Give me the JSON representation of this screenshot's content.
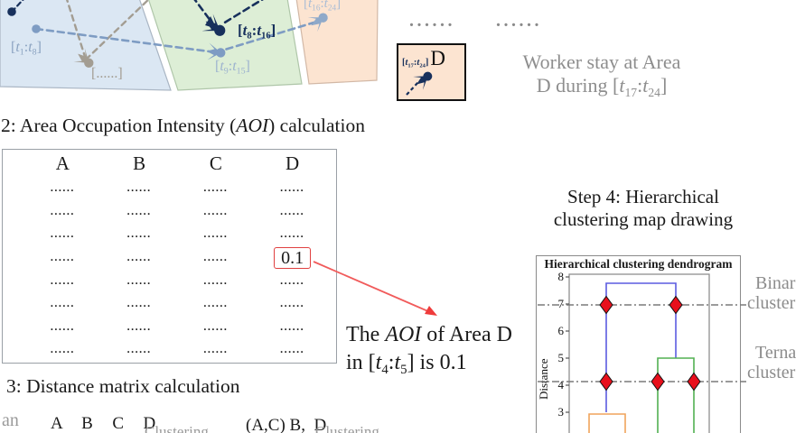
{
  "map": {
    "regions": [
      {
        "name": "area-left",
        "fill": "#dbe7f3",
        "stroke": "#aab6c4"
      },
      {
        "name": "area-middle",
        "fill": "#ddeed6",
        "stroke": "#afc6a9"
      },
      {
        "name": "area-right",
        "fill": "#fce4d1",
        "stroke": "#d2b8a6"
      }
    ],
    "labels": {
      "t1_t8": "[<i>t</i><sub>1</sub>:<i>t</i><sub>8</sub>]",
      "dots": "[......]",
      "t8_t16": "[<i>t</i><sub>8</sub>:<i>t</i><sub>16</sub>]",
      "t9_t15": "[<i>t</i><sub>9</sub>:<i>t</i><sub>15</sub>]",
      "t16_t24": "[<i>t</i><sub>16</sub>:<i>t</i><sub>24</sub>]"
    },
    "trajectory_colors": {
      "navy": "#17305c",
      "steel_blue": "#7e9cc3",
      "gray": "#a39d92"
    }
  },
  "ellipsis_top_1": "......",
  "ellipsis_top_2": "......",
  "worker_box": {
    "time_label": "[<i>t</i><sub>17</sub>:<i>t</i><sub>24</sub>]",
    "area_label": "D"
  },
  "worker_caption": {
    "line1": "Worker stay at Area",
    "line2": "D during [<i>t</i><sub>17</sub>:<i>t</i><sub>24</sub>]"
  },
  "step2_heading": "2: Area Occupation Intensity (<i>AOI</i>) calculation",
  "aoi_table": {
    "headers": [
      "A",
      "B",
      "C",
      "D"
    ],
    "rows": [
      [
        "......",
        "......",
        "......",
        "......"
      ],
      [
        "......",
        "......",
        "......",
        "......"
      ],
      [
        "......",
        "......",
        "......",
        "......"
      ],
      [
        "......",
        "......",
        "......",
        "0.1"
      ],
      [
        "......",
        "......",
        "......",
        "......"
      ],
      [
        "......",
        "......",
        "......",
        "......"
      ],
      [
        "......",
        "......",
        "......",
        "......"
      ],
      [
        "......",
        "......",
        "......",
        "......"
      ]
    ],
    "highlight_value": "0.1",
    "highlight_cell": {
      "row": 4,
      "column": "D"
    }
  },
  "aoi_caption": {
    "line1": "The <i>AOI</i> of Area D",
    "line2": "in [<i>t</i><sub>4</sub>:<i>t</i><sub>5</sub>] is 0.1"
  },
  "step3_heading": "3: Distance matrix calculation",
  "bottom_row": {
    "fragment_left": "an",
    "matrix_headers": "A  B  C  D",
    "clustering_1": "Clustering",
    "cluster_set": "(A,C) B,  D",
    "clustering_2": "Clustering"
  },
  "step4_heading": {
    "line1": "Step 4: Hierarchical",
    "line2": "clustering map drawing"
  },
  "right_labels": {
    "binary_line1": "Binar",
    "binary_line2": "cluster",
    "ternary_line1": "Terna",
    "ternary_line2": "cluster"
  },
  "chart_data": {
    "type": "dendrogram",
    "title": "Hierarchical clustering dendrogram",
    "ylabel": "Distance",
    "yticks": [
      8,
      7,
      6,
      5,
      4,
      3
    ],
    "visible_y_range": [
      3,
      8
    ],
    "links": [
      {
        "color_name": "orange",
        "merge_distance": 3,
        "children": 2
      },
      {
        "color_name": "green",
        "merge_distance": 5,
        "children": 2
      },
      {
        "color_name": "blue",
        "merge_distance": 7.7,
        "children": 2
      }
    ],
    "threshold_lines": [
      {
        "distance": 7,
        "style": "dash-dot",
        "diamond_crossings": 2
      },
      {
        "distance": 4.2,
        "style": "dash-dot",
        "diamond_crossings": 3
      }
    ],
    "marker": {
      "shape": "diamond",
      "fill": "#e8101c",
      "edge": "#111111"
    },
    "link_colors": {
      "blue": "#5b5be0",
      "green": "#52b152",
      "orange": "#f0a45c"
    },
    "grid": false,
    "legend": "none"
  }
}
